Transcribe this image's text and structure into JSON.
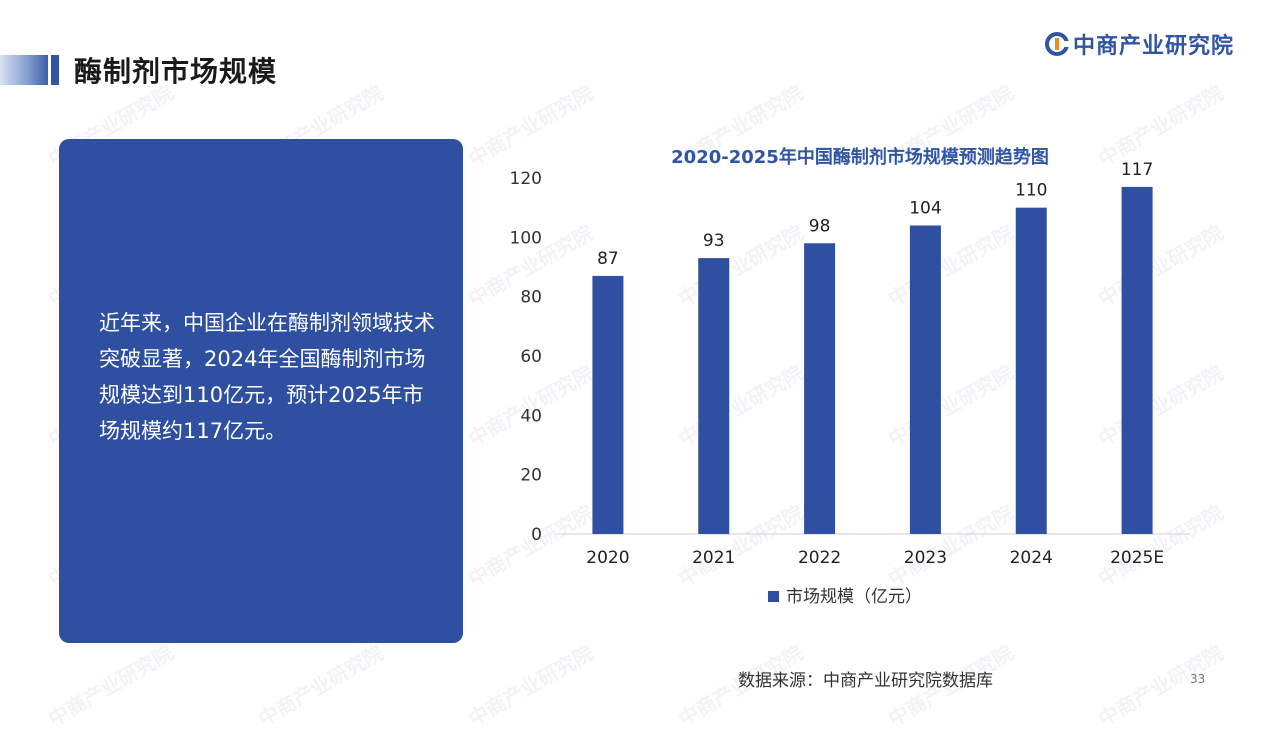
{
  "header": {
    "title": "酶制剂市场规模",
    "brand_name": "中商产业研究院"
  },
  "left_panel": {
    "text": "近年来，中国企业在酶制剂领域技术突破显著，2024年全国酶制剂市场规模达到110亿元，预计2025年市场规模约117亿元。"
  },
  "chart_data": {
    "type": "bar",
    "title": "2020-2025年中国酶制剂市场规模预测趋势图",
    "categories": [
      "2020",
      "2021",
      "2022",
      "2023",
      "2024",
      "2025E"
    ],
    "series": [
      {
        "name": "市场规模（亿元）",
        "values": [
          87,
          93,
          98,
          104,
          110,
          117
        ]
      }
    ],
    "ylim": [
      0,
      120
    ],
    "yticks": [
      0,
      20,
      40,
      60,
      80,
      100,
      120
    ],
    "grid": false,
    "legend": "bottom",
    "bar_color": "#2f50a0",
    "title_color": "#2f55a4"
  },
  "footer": {
    "source": "数据来源：中商产业研究院数据库",
    "page_number": "33"
  },
  "watermark": "中商产业研究院"
}
